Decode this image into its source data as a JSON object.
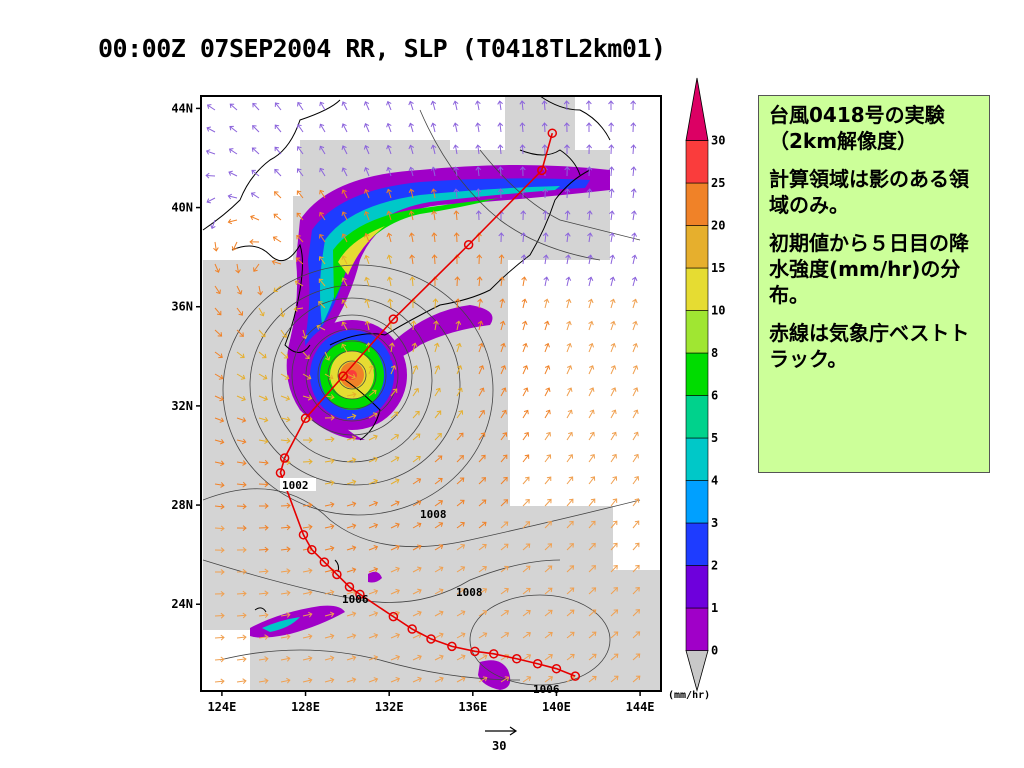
{
  "title": "00:00Z 07SEP2004 RR, SLP (T0418TL2km01)",
  "axes": {
    "lat_ticks": [
      "44N",
      "40N",
      "36N",
      "32N",
      "28N",
      "24N"
    ],
    "lon_ticks": [
      "124E",
      "128E",
      "132E",
      "136E",
      "140E",
      "144E"
    ],
    "lat_range": [
      20.5,
      44.5
    ],
    "lon_range": [
      123,
      145
    ]
  },
  "colorbar": {
    "labels": [
      "0",
      "1",
      "2",
      "3",
      "4",
      "5",
      "6",
      "8",
      "10",
      "15",
      "20",
      "25",
      "30"
    ],
    "colors": [
      "#c8c8c8",
      "#a000c8",
      "#6e00dc",
      "#1e3cff",
      "#00a0ff",
      "#00c8c8",
      "#00d28c",
      "#00dc00",
      "#a0e632",
      "#e6dc32",
      "#e6af2d",
      "#f08228",
      "#fa3c3c",
      "#dc0064"
    ],
    "unit": "(mm/hr)"
  },
  "vector_ref": "30",
  "pressure_labels": [
    "1002",
    "1008",
    "1006",
    "1008",
    "1006",
    "1006"
  ],
  "track_points": [
    {
      "lat": 43.0,
      "lon": 139.8
    },
    {
      "lat": 41.5,
      "lon": 139.3
    },
    {
      "lat": 38.5,
      "lon": 135.8
    },
    {
      "lat": 35.5,
      "lon": 132.2
    },
    {
      "lat": 33.2,
      "lon": 129.8
    },
    {
      "lat": 31.5,
      "lon": 128.0
    },
    {
      "lat": 29.9,
      "lon": 127.0
    },
    {
      "lat": 29.3,
      "lon": 126.8
    },
    {
      "lat": 26.8,
      "lon": 127.9
    },
    {
      "lat": 26.2,
      "lon": 128.3
    },
    {
      "lat": 25.7,
      "lon": 128.9
    },
    {
      "lat": 25.2,
      "lon": 129.5
    },
    {
      "lat": 24.7,
      "lon": 130.1
    },
    {
      "lat": 24.4,
      "lon": 130.6
    },
    {
      "lat": 23.5,
      "lon": 132.2
    },
    {
      "lat": 23.0,
      "lon": 133.1
    },
    {
      "lat": 22.6,
      "lon": 134.0
    },
    {
      "lat": 22.3,
      "lon": 135.0
    },
    {
      "lat": 22.1,
      "lon": 136.1
    },
    {
      "lat": 22.0,
      "lon": 137.0
    },
    {
      "lat": 21.8,
      "lon": 138.1
    },
    {
      "lat": 21.6,
      "lon": 139.1
    },
    {
      "lat": 21.4,
      "lon": 140.0
    },
    {
      "lat": 21.1,
      "lon": 140.9
    }
  ],
  "colors": {
    "track": "#e60000",
    "background": "#ffffff",
    "domain_shade": "#d4d4d4",
    "note_bg": "#ccff99"
  },
  "note": {
    "line1": "台風0418号の実験（2km解像度）",
    "line2": "計算領域は影のある領域のみ。",
    "line3": "初期値から５日目の降水強度(mm/hr)の分布。",
    "line4": "赤線は気象庁ベストトラック。"
  }
}
